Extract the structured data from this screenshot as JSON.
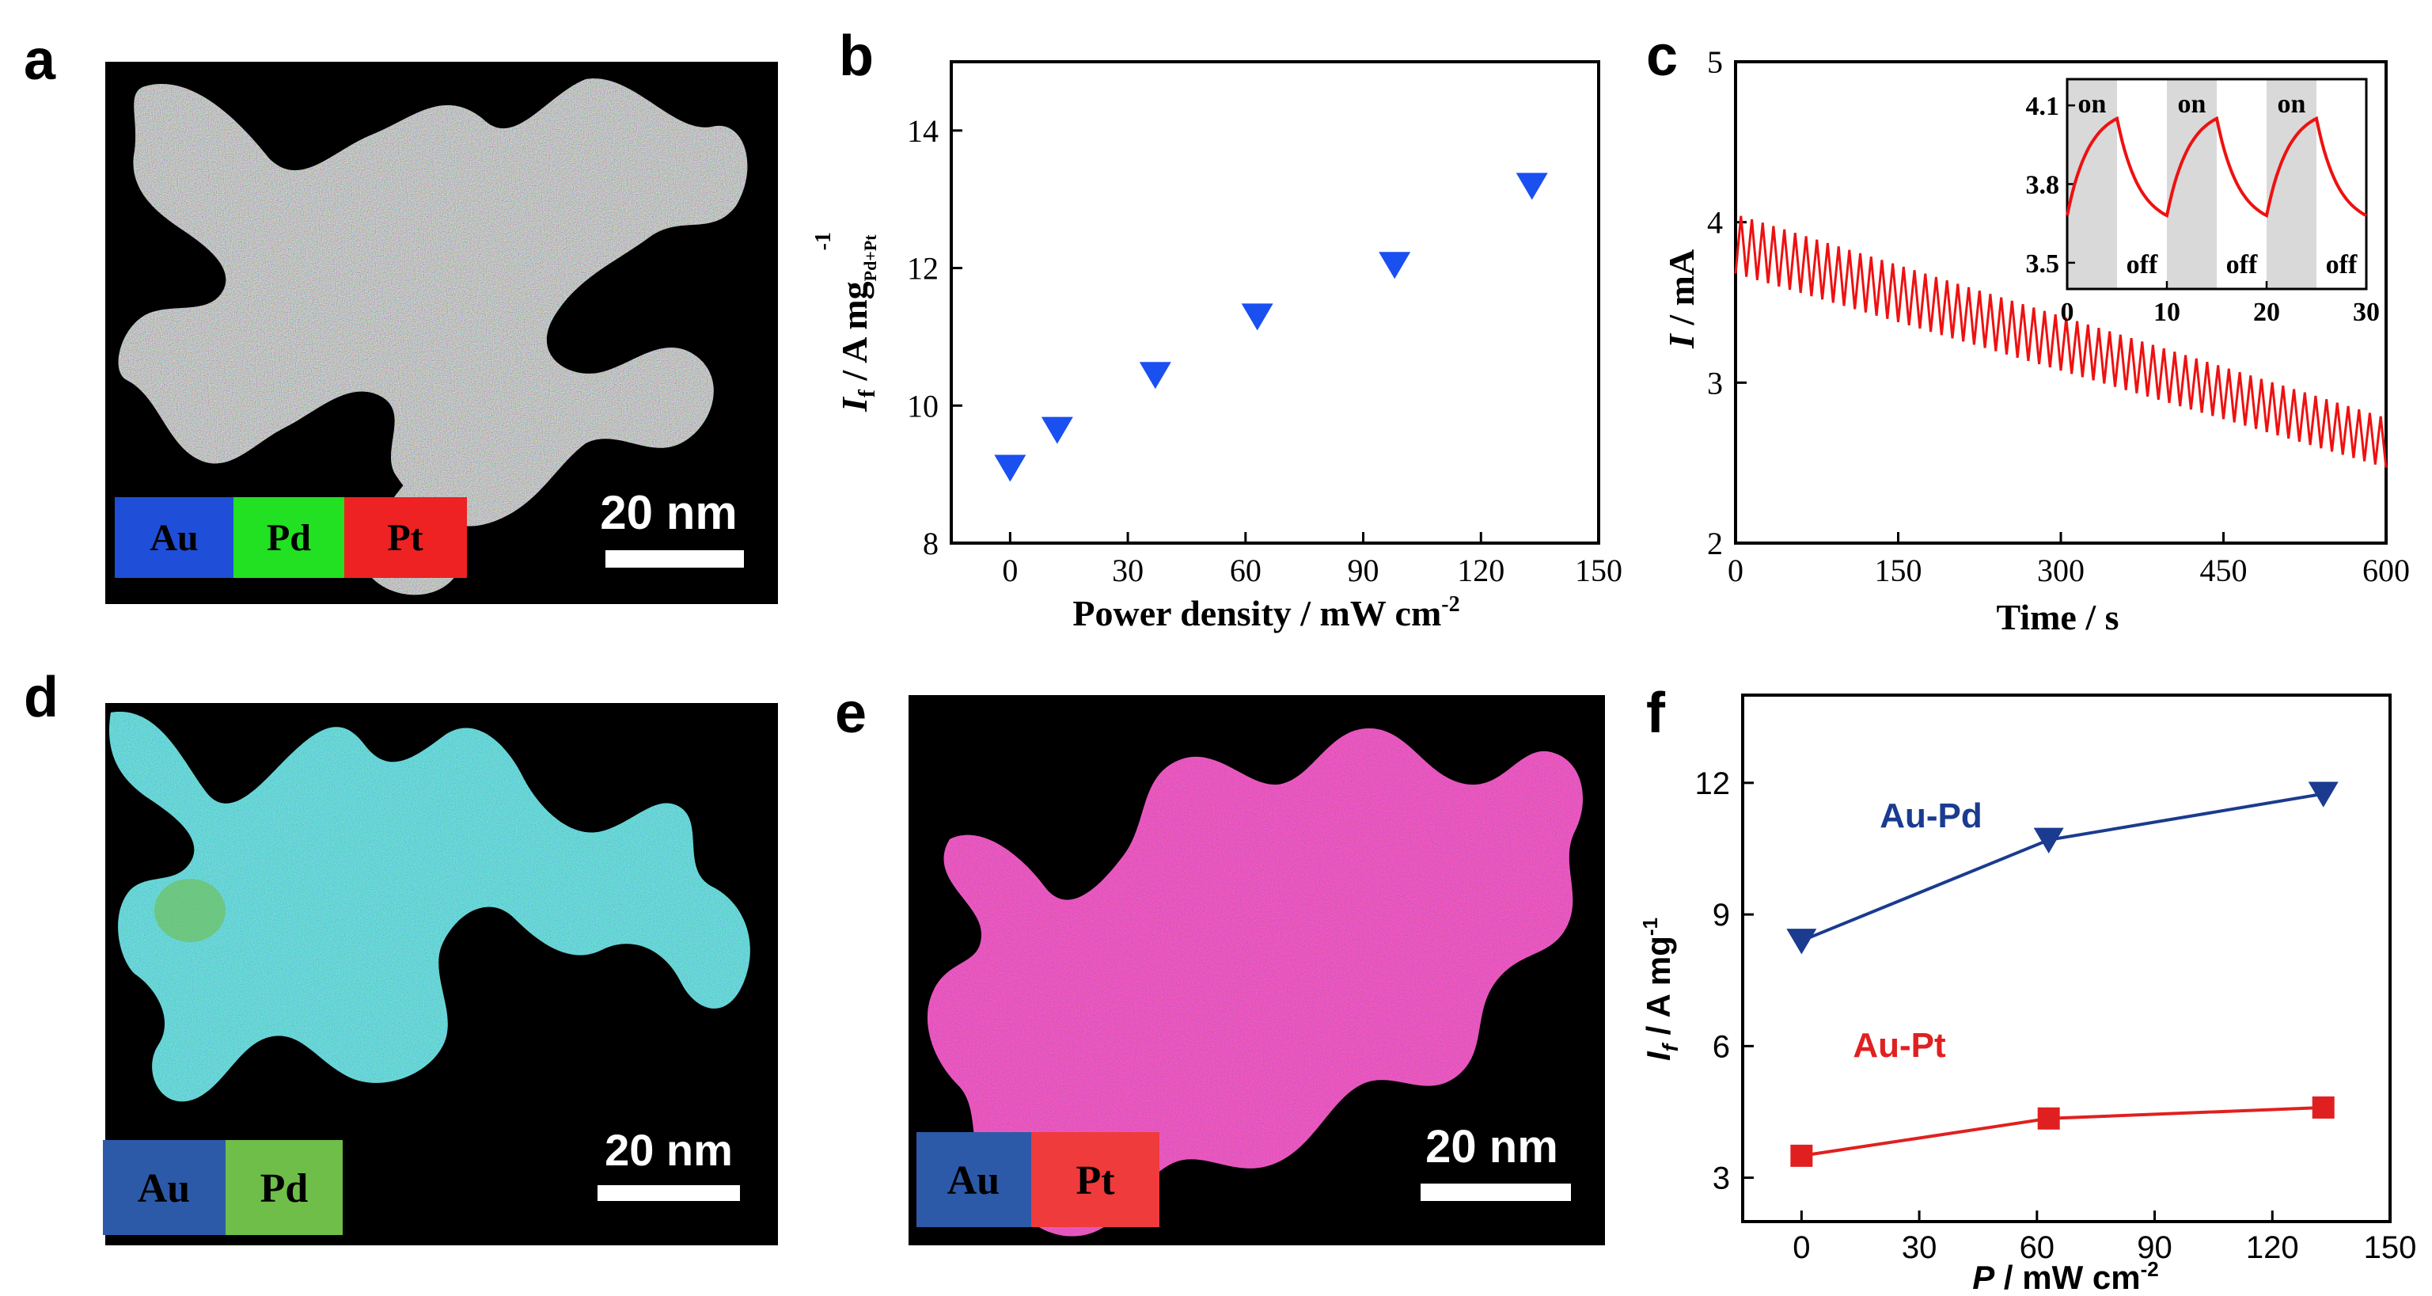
{
  "colors": {
    "au_blue": "#1f4fd8",
    "pd_green": "#22e022",
    "pt_red": "#ee2222",
    "au_blue_d": "#2d5aa8",
    "pd_green_d": "#6fbe4a",
    "pt_red_e": "#ef3b3b",
    "triangle_b": "#1a4ff0",
    "line_c": "#ee1111",
    "aupd_line": "#1a3b8f",
    "aupt_line": "#e02020"
  },
  "panels": {
    "a": {
      "label": "a",
      "scale_label": "20 nm",
      "legend": [
        "Au",
        "Pd",
        "Pt"
      ]
    },
    "d": {
      "label": "d",
      "scale_label": "20 nm",
      "legend": [
        "Au",
        "Pd"
      ]
    },
    "e": {
      "label": "e",
      "scale_label": "20 nm",
      "legend": [
        "Au",
        "Pt"
      ]
    },
    "b": {
      "label": "b"
    },
    "c": {
      "label": "c"
    },
    "f": {
      "label": "f"
    }
  },
  "chart_data": [
    {
      "id": "b",
      "type": "scatter",
      "marker": "triangle-down",
      "x": [
        0,
        12,
        37,
        63,
        98,
        133
      ],
      "y": [
        9.1,
        9.65,
        10.45,
        11.3,
        12.05,
        13.2
      ],
      "xlabel": "Power density / mW cm",
      "xlabel_sup": "-2",
      "ylabel_main": "I",
      "ylabel_sub": "f",
      "ylabel_rest": " / A mg",
      "ylabel_subscript2": "Pd+Pt",
      "ylabel_sup": "-1",
      "xlim": [
        -15,
        150
      ],
      "ylim": [
        8,
        15
      ],
      "xticks": [
        "0",
        "30",
        "60",
        "90",
        "120",
        "150"
      ],
      "xtick_values": [
        0,
        30,
        60,
        90,
        120,
        150
      ],
      "yticks": [
        "8",
        "10",
        "12",
        "14"
      ],
      "ytick_values": [
        8,
        10,
        12,
        14
      ]
    },
    {
      "id": "c",
      "type": "line",
      "series_desc": "sawtooth photocurrent, period 10 s, decaying from ~4.0 to ~2.6 mA",
      "start_high": 4.05,
      "start_low": 3.68,
      "end_high": 2.78,
      "end_low": 2.47,
      "period": 10,
      "xlabel": "Time / s",
      "ylabel_main": "I",
      "ylabel_rest": " / mA",
      "xlim": [
        0,
        600
      ],
      "ylim": [
        2,
        5
      ],
      "xticks": [
        "0",
        "150",
        "300",
        "450",
        "600"
      ],
      "xtick_values": [
        0,
        150,
        300,
        450,
        600
      ],
      "yticks": [
        "2",
        "3",
        "4",
        "5"
      ],
      "ytick_values": [
        2,
        3,
        4,
        5
      ],
      "inset": {
        "type": "line",
        "xlim": [
          0,
          30
        ],
        "ylim": [
          3.4,
          4.2
        ],
        "xticks": [
          "0",
          "10",
          "20",
          "30"
        ],
        "xtick_values": [
          0,
          10,
          20,
          30
        ],
        "yticks": [
          "3.5",
          "3.8",
          "4.1"
        ],
        "ytick_values": [
          3.5,
          3.8,
          4.1
        ],
        "on_intervals": [
          [
            0,
            5
          ],
          [
            10,
            15
          ],
          [
            20,
            25
          ]
        ],
        "low": 3.68,
        "high": 4.05,
        "on_labels": [
          "on",
          "on",
          "on"
        ],
        "off_labels": [
          "off",
          "off",
          "off"
        ]
      }
    },
    {
      "id": "f",
      "type": "line",
      "series": [
        {
          "name": "Au-Pd",
          "marker": "triangle-down",
          "x": [
            0,
            63,
            133
          ],
          "y": [
            8.4,
            10.7,
            11.75
          ]
        },
        {
          "name": "Au-Pt",
          "marker": "square",
          "x": [
            0,
            63,
            133
          ],
          "y": [
            3.5,
            4.35,
            4.6
          ]
        }
      ],
      "xlabel_main": "P",
      "xlabel_rest": " / mW cm",
      "xlabel_sup": "-2",
      "ylabel_main": "I",
      "ylabel_sub": "f",
      "ylabel_rest": " / A mg",
      "ylabel_sup": "-1",
      "xlim": [
        -15,
        150
      ],
      "ylim": [
        2,
        14
      ],
      "xticks": [
        "0",
        "30",
        "60",
        "90",
        "120",
        "150"
      ],
      "xtick_values": [
        0,
        30,
        60,
        90,
        120,
        150
      ],
      "yticks": [
        "3",
        "6",
        "9",
        "12"
      ],
      "ytick_values": [
        3,
        6,
        9,
        12
      ]
    }
  ]
}
